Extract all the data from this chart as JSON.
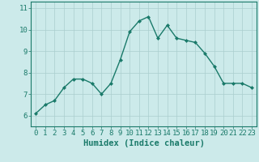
{
  "x": [
    0,
    1,
    2,
    3,
    4,
    5,
    6,
    7,
    8,
    9,
    10,
    11,
    12,
    13,
    14,
    15,
    16,
    17,
    18,
    19,
    20,
    21,
    22,
    23
  ],
  "y": [
    6.1,
    6.5,
    6.7,
    7.3,
    7.7,
    7.7,
    7.5,
    7.0,
    7.5,
    8.6,
    9.9,
    10.4,
    10.6,
    9.6,
    10.2,
    9.6,
    9.5,
    9.4,
    8.9,
    8.3,
    7.5,
    7.5,
    7.5,
    7.3
  ],
  "line_color": "#1a7a6a",
  "marker": "D",
  "marker_size": 2.0,
  "bg_color": "#cceaea",
  "grid_color": "#aacece",
  "xlabel": "Humidex (Indice chaleur)",
  "xlim": [
    -0.5,
    23.5
  ],
  "ylim": [
    5.5,
    11.3
  ],
  "yticks": [
    6,
    7,
    8,
    9,
    10,
    11
  ],
  "xticks": [
    0,
    1,
    2,
    3,
    4,
    5,
    6,
    7,
    8,
    9,
    10,
    11,
    12,
    13,
    14,
    15,
    16,
    17,
    18,
    19,
    20,
    21,
    22,
    23
  ],
  "tick_label_color": "#1a7a6a",
  "xlabel_color": "#1a7a6a",
  "xlabel_fontsize": 7.5,
  "tick_fontsize": 6.5,
  "linewidth": 1.0,
  "spine_color": "#1a7a6a"
}
